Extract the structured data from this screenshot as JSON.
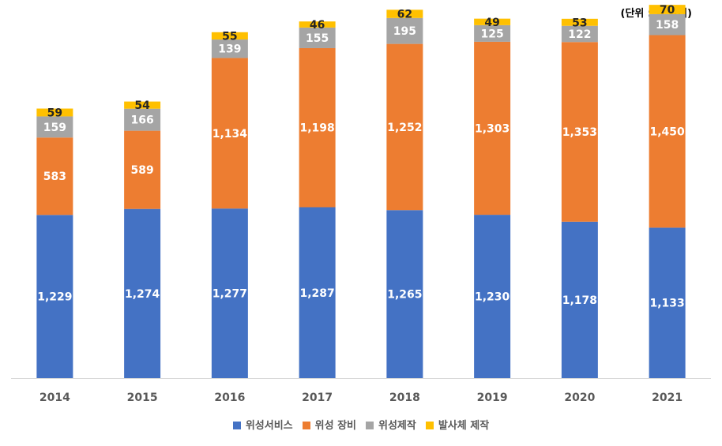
{
  "unit_note": "(단위 : 억 달러)",
  "chart_data": {
    "type": "bar",
    "stacked": true,
    "categories": [
      "2014",
      "2015",
      "2016",
      "2017",
      "2018",
      "2019",
      "2020",
      "2021"
    ],
    "series": [
      {
        "name": "위성서비스",
        "color": "#4472C4",
        "label_color": "#ffffff",
        "values": [
          1229,
          1274,
          1277,
          1287,
          1265,
          1230,
          1178,
          1133
        ]
      },
      {
        "name": "위성 장비",
        "color": "#ED7D31",
        "label_color": "#ffffff",
        "values": [
          583,
          589,
          1134,
          1198,
          1252,
          1303,
          1353,
          1450
        ]
      },
      {
        "name": "위성제작",
        "color": "#A5A5A5",
        "label_color": "#ffffff",
        "values": [
          159,
          166,
          139,
          155,
          195,
          125,
          122,
          158
        ]
      },
      {
        "name": "발사체 제작",
        "color": "#FFC000",
        "label_color": "#262626",
        "values": [
          59,
          54,
          55,
          46,
          62,
          49,
          53,
          70
        ]
      }
    ],
    "ylim": [
      0,
      2800
    ],
    "grid": false,
    "legend": "bottom"
  }
}
